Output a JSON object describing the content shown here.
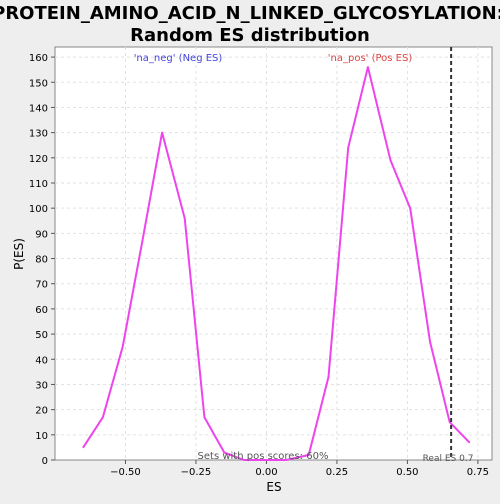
{
  "chart_data": {
    "type": "line",
    "title": "PROTEIN_AMINO_ACID_N_LINKED_GLYCOSYLATION: Random ES distribution",
    "title_lines": [
      "PROTEIN_AMINO_ACID_N_LINKED_GLYCOSYLATION:",
      "Random ES distribution"
    ],
    "xlabel": "ES",
    "ylabel": "P(ES)",
    "xlim": [
      -0.75,
      0.8
    ],
    "ylim": [
      0,
      164
    ],
    "x_ticks": [
      -0.5,
      -0.25,
      0.0,
      0.25,
      0.5,
      0.75
    ],
    "x_tick_labels": [
      "−0.50",
      "−0.25",
      "0.00",
      "0.25",
      "0.50",
      "0.75"
    ],
    "y_ticks": [
      0,
      10,
      20,
      30,
      40,
      50,
      60,
      70,
      80,
      90,
      100,
      110,
      120,
      130,
      140,
      150,
      160
    ],
    "grid": true,
    "series": [
      {
        "color": "#ee44ee",
        "x": [
          -0.65,
          -0.58,
          -0.51,
          -0.44,
          -0.37,
          -0.29,
          -0.22,
          -0.15,
          -0.08,
          -0.01,
          0.07,
          0.15,
          0.22,
          0.29,
          0.36,
          0.44,
          0.51,
          0.58,
          0.65,
          0.72
        ],
        "y": [
          5,
          17,
          45,
          87,
          130,
          96,
          17,
          3,
          0,
          0,
          0,
          2,
          33,
          124,
          156,
          119,
          100,
          47,
          15,
          7
        ]
      }
    ],
    "annotations": {
      "neg_label": "'na_neg' (Neg ES)",
      "pos_label": "'na_pos' (Pos ES)",
      "neg_color": "#4444dd",
      "pos_color": "#dd4444",
      "sets_text": "Sets with pos scores: 60%",
      "real_es_text": "Real ES 0.7",
      "real_es_value": 0.655
    }
  }
}
